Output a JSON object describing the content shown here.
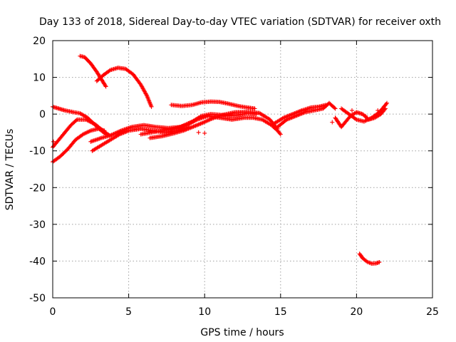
{
  "chart_data": {
    "type": "scatter",
    "title": "Day 133 of 2018, Sidereal Day-to-day VTEC variation (SDTVAR) for receiver oxth",
    "xlabel": "GPS time / hours",
    "ylabel": "SDTVAR / TECUs",
    "xlim": [
      0,
      25
    ],
    "ylim": [
      -50,
      20
    ],
    "xticks": [
      0,
      5,
      10,
      15,
      20,
      25
    ],
    "yticks": [
      -50,
      -40,
      -30,
      -20,
      -10,
      0,
      10,
      20
    ],
    "xtick_labels": [
      "0",
      "5",
      "10",
      "15",
      "20",
      "25"
    ],
    "ytick_labels": [
      "-50",
      "-40",
      "-30",
      "-20",
      "-10",
      "0",
      "10",
      "20"
    ],
    "grid": true,
    "marker": "plus",
    "color": "#ff0000",
    "series": [
      {
        "name": "arc-high-a",
        "points": [
          [
            1.8,
            15.8
          ],
          [
            2.1,
            15.5
          ],
          [
            2.5,
            13.8
          ],
          [
            2.9,
            11.5
          ],
          [
            3.2,
            9.5
          ],
          [
            3.5,
            7.5
          ]
        ]
      },
      {
        "name": "arc-high-b",
        "points": [
          [
            2.9,
            9.0
          ],
          [
            3.3,
            10.5
          ],
          [
            3.8,
            12.0
          ],
          [
            4.3,
            12.6
          ],
          [
            4.8,
            12.3
          ],
          [
            5.3,
            10.8
          ],
          [
            5.8,
            8.0
          ],
          [
            6.2,
            5.0
          ],
          [
            6.5,
            2.0
          ]
        ]
      },
      {
        "name": "arc-left-top",
        "points": [
          [
            0.0,
            2.0
          ],
          [
            0.4,
            1.5
          ],
          [
            0.8,
            1.0
          ],
          [
            1.4,
            0.5
          ],
          [
            1.8,
            0.2
          ],
          [
            2.3,
            -1.0
          ],
          [
            2.8,
            -3.0
          ],
          [
            3.2,
            -4.5
          ],
          [
            3.5,
            -5.5
          ]
        ]
      },
      {
        "name": "arc-rise-1",
        "points": [
          [
            0.0,
            -9.0
          ],
          [
            0.4,
            -7.0
          ],
          [
            0.8,
            -5.0
          ],
          [
            1.2,
            -3.0
          ],
          [
            1.6,
            -1.5
          ],
          [
            2.2,
            -1.5
          ],
          [
            2.8,
            -2.8
          ],
          [
            3.3,
            -4.5
          ],
          [
            3.8,
            -6.0
          ]
        ]
      },
      {
        "name": "arc-rise-2",
        "points": [
          [
            0.0,
            -13.0
          ],
          [
            0.5,
            -11.5
          ],
          [
            1.0,
            -9.5
          ],
          [
            1.5,
            -7.0
          ],
          [
            2.0,
            -5.5
          ],
          [
            2.5,
            -4.5
          ],
          [
            3.0,
            -4.0
          ],
          [
            3.4,
            -4.5
          ]
        ]
      },
      {
        "name": "arc-mid-low",
        "points": [
          [
            2.6,
            -10.0
          ],
          [
            3.2,
            -8.5
          ],
          [
            3.8,
            -7.0
          ],
          [
            4.4,
            -5.5
          ],
          [
            5.0,
            -4.5
          ],
          [
            5.8,
            -4.0
          ],
          [
            6.6,
            -4.5
          ],
          [
            7.4,
            -5.0
          ],
          [
            8.2,
            -4.5
          ],
          [
            9.0,
            -3.5
          ]
        ]
      },
      {
        "name": "arc-mid-a",
        "points": [
          [
            2.5,
            -7.5
          ],
          [
            3.2,
            -6.5
          ],
          [
            3.8,
            -5.8
          ],
          [
            4.5,
            -4.5
          ],
          [
            5.2,
            -3.5
          ],
          [
            6.0,
            -3.0
          ],
          [
            6.8,
            -3.5
          ],
          [
            7.6,
            -3.8
          ],
          [
            8.4,
            -3.5
          ],
          [
            9.2,
            -2.0
          ],
          [
            9.8,
            -0.5
          ],
          [
            10.4,
            0.0
          ],
          [
            11.0,
            -0.2
          ],
          [
            11.6,
            -0.5
          ],
          [
            12.2,
            -0.3
          ],
          [
            12.8,
            0.2
          ],
          [
            13.4,
            0.0
          ]
        ]
      },
      {
        "name": "arc-mid-b",
        "points": [
          [
            5.8,
            -5.5
          ],
          [
            6.5,
            -5.0
          ],
          [
            7.2,
            -4.5
          ],
          [
            8.0,
            -4.0
          ],
          [
            8.8,
            -3.0
          ],
          [
            9.5,
            -1.5
          ],
          [
            10.2,
            -0.5
          ],
          [
            11.0,
            -1.0
          ],
          [
            11.8,
            -1.5
          ],
          [
            12.6,
            -1.0
          ],
          [
            13.2,
            -1.0
          ],
          [
            13.8,
            -1.5
          ],
          [
            14.4,
            -3.0
          ],
          [
            14.8,
            -4.5
          ],
          [
            15.0,
            -5.5
          ]
        ]
      },
      {
        "name": "arc-mid-c",
        "points": [
          [
            6.4,
            -6.5
          ],
          [
            7.2,
            -6.0
          ],
          [
            8.0,
            -5.2
          ],
          [
            8.6,
            -4.5
          ],
          [
            9.2,
            -3.5
          ],
          [
            9.8,
            -2.5
          ],
          [
            10.5,
            -1.2
          ],
          [
            11.2,
            -0.2
          ],
          [
            12.0,
            0.5
          ],
          [
            12.8,
            0.6
          ],
          [
            13.6,
            0.3
          ],
          [
            14.3,
            -1.5
          ],
          [
            14.8,
            -4.0
          ]
        ]
      },
      {
        "name": "arc-upper-mid",
        "points": [
          [
            7.8,
            2.5
          ],
          [
            8.5,
            2.2
          ],
          [
            9.2,
            2.5
          ],
          [
            9.8,
            3.2
          ],
          [
            10.4,
            3.4
          ],
          [
            11.0,
            3.3
          ],
          [
            11.6,
            2.8
          ],
          [
            12.2,
            2.2
          ],
          [
            12.8,
            1.8
          ],
          [
            13.3,
            1.5
          ]
        ]
      },
      {
        "name": "arc-late-a",
        "points": [
          [
            14.8,
            -3.5
          ],
          [
            15.4,
            -1.5
          ],
          [
            16.0,
            -0.5
          ],
          [
            16.6,
            0.5
          ],
          [
            17.2,
            1.0
          ],
          [
            17.8,
            1.5
          ],
          [
            18.2,
            3.0
          ],
          [
            18.6,
            1.5
          ]
        ]
      },
      {
        "name": "arc-late-b",
        "points": [
          [
            14.6,
            -2.5
          ],
          [
            15.2,
            -1.0
          ],
          [
            15.8,
            0.0
          ],
          [
            16.4,
            1.0
          ],
          [
            17.0,
            1.8
          ],
          [
            17.5,
            2.0
          ],
          [
            18.0,
            2.5
          ]
        ]
      },
      {
        "name": "arc-late-c",
        "points": [
          [
            18.6,
            -1.0
          ],
          [
            19.0,
            -3.5
          ],
          [
            19.3,
            -2.0
          ],
          [
            19.6,
            -0.5
          ],
          [
            20.0,
            0.5
          ],
          [
            20.4,
            0.0
          ],
          [
            20.8,
            -1.5
          ],
          [
            21.2,
            -1.0
          ],
          [
            21.6,
            0.0
          ],
          [
            21.9,
            1.5
          ]
        ]
      },
      {
        "name": "arc-late-d",
        "points": [
          [
            19.0,
            1.5
          ],
          [
            19.5,
            0.0
          ],
          [
            20.0,
            -1.5
          ],
          [
            20.5,
            -2.0
          ],
          [
            21.0,
            -1.0
          ],
          [
            21.5,
            0.5
          ],
          [
            21.9,
            2.5
          ],
          [
            22.0,
            3.0
          ]
        ]
      },
      {
        "name": "scatter-late",
        "points": [
          [
            18.4,
            -2.2
          ],
          [
            19.7,
            1.0
          ],
          [
            20.6,
            -0.5
          ],
          [
            21.4,
            1.0
          ]
        ]
      },
      {
        "name": "arc-low-outlier",
        "points": [
          [
            20.2,
            -38.0
          ],
          [
            20.4,
            -39.2
          ],
          [
            20.7,
            -40.2
          ],
          [
            21.0,
            -40.7
          ],
          [
            21.3,
            -40.6
          ],
          [
            21.5,
            -40.3
          ]
        ]
      },
      {
        "name": "isolated",
        "points": [
          [
            0.05,
            -7.5
          ],
          [
            7.8,
            -5.0
          ],
          [
            9.6,
            -5.0
          ],
          [
            10.0,
            -5.2
          ]
        ]
      }
    ]
  }
}
